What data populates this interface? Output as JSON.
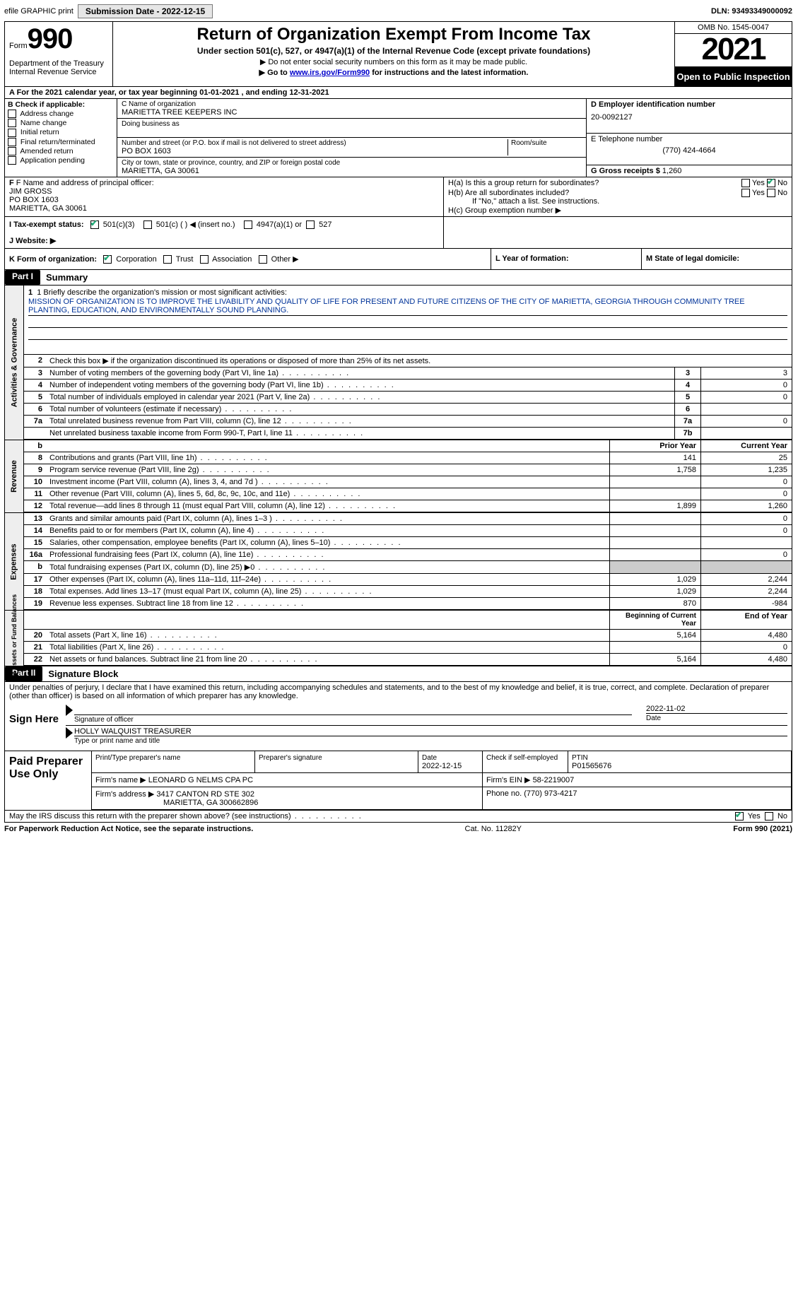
{
  "topbar": {
    "efile": "efile GRAPHIC print",
    "submission_label": "Submission Date - 2022-12-15",
    "dln": "DLN: 93493349000092"
  },
  "header": {
    "form_word": "Form",
    "form_num": "990",
    "title": "Return of Organization Exempt From Income Tax",
    "sub1": "Under section 501(c), 527, or 4947(a)(1) of the Internal Revenue Code (except private foundations)",
    "sub2": "▶ Do not enter social security numbers on this form as it may be made public.",
    "sub3_pre": "▶ Go to ",
    "sub3_link": "www.irs.gov/Form990",
    "sub3_post": " for instructions and the latest information.",
    "dept": "Department of the Treasury Internal Revenue Service",
    "omb": "OMB No. 1545-0047",
    "year": "2021",
    "open": "Open to Public Inspection"
  },
  "rowA": "A For the 2021 calendar year, or tax year beginning 01-01-2021    , and ending 12-31-2021",
  "colB": {
    "header": "B Check if applicable:",
    "items": [
      "Address change",
      "Name change",
      "Initial return",
      "Final return/terminated",
      "Amended return",
      "Application pending"
    ]
  },
  "colC": {
    "name_lbl": "C Name of organization",
    "name": "MARIETTA TREE KEEPERS INC",
    "dba_lbl": "Doing business as",
    "street_lbl": "Number and street (or P.O. box if mail is not delivered to street address)",
    "room_lbl": "Room/suite",
    "street": "PO BOX 1603",
    "city_lbl": "City or town, state or province, country, and ZIP or foreign postal code",
    "city": "MARIETTA, GA  30061"
  },
  "colD": {
    "ein_lbl": "D Employer identification number",
    "ein": "20-0092127",
    "phone_lbl": "E Telephone number",
    "phone": "(770) 424-4664",
    "gross_lbl": "G Gross receipts $",
    "gross": "1,260"
  },
  "rowF": {
    "lbl": "F Name and address of principal officer:",
    "name": "JIM GROSS",
    "addr1": "PO BOX 1603",
    "addr2": "MARIETTA, GA  30061"
  },
  "rowH": {
    "a": "H(a)  Is this a group return for subordinates?",
    "b": "H(b)  Are all subordinates included?",
    "b2": "If \"No,\" attach a list. See instructions.",
    "c": "H(c)  Group exemption number ▶",
    "yes": "Yes",
    "no": "No"
  },
  "rowI": {
    "lbl": "I    Tax-exempt status:",
    "o1": "501(c)(3)",
    "o2": "501(c) (  ) ◀ (insert no.)",
    "o3": "4947(a)(1) or",
    "o4": "527"
  },
  "rowJ": "J    Website: ▶",
  "rowK": {
    "lbl": "K Form of organization:",
    "o1": "Corporation",
    "o2": "Trust",
    "o3": "Association",
    "o4": "Other ▶",
    "l": "L Year of formation:",
    "m": "M State of legal domicile:"
  },
  "part1": {
    "hdr": "Part I",
    "title": "Summary",
    "q1_lbl": "1   Briefly describe the organization's mission or most significant activities:",
    "q1": "MISSION OF ORGANIZATION IS TO IMPROVE THE LIVABILITY AND QUALITY OF LIFE FOR PRESENT AND FUTURE CITIZENS OF THE CITY OF MARIETTA, GEORGIA THROUGH COMMUNITY TREE PLANTING, EDUCATION, AND ENVIRONMENTALLY SOUND PLANNING.",
    "q2": "Check this box ▶      if the organization discontinued its operations or disposed of more than 25% of its net assets.",
    "rows_ag": [
      {
        "n": "3",
        "t": "Number of voting members of the governing body (Part VI, line 1a)",
        "b": "3",
        "v": "3"
      },
      {
        "n": "4",
        "t": "Number of independent voting members of the governing body (Part VI, line 1b)",
        "b": "4",
        "v": "0"
      },
      {
        "n": "5",
        "t": "Total number of individuals employed in calendar year 2021 (Part V, line 2a)",
        "b": "5",
        "v": "0"
      },
      {
        "n": "6",
        "t": "Total number of volunteers (estimate if necessary)",
        "b": "6",
        "v": ""
      },
      {
        "n": "7a",
        "t": "Total unrelated business revenue from Part VIII, column (C), line 12",
        "b": "7a",
        "v": "0"
      },
      {
        "n": "",
        "t": "Net unrelated business taxable income from Form 990-T, Part I, line 11",
        "b": "7b",
        "v": ""
      }
    ],
    "tab_ag": "Activities & Governance",
    "tab_rev": "Revenue",
    "tab_exp": "Expenses",
    "tab_net": "Net Assets or Fund Balances",
    "col_prior": "Prior Year",
    "col_curr": "Current Year",
    "col_begin": "Beginning of Current Year",
    "col_end": "End of Year",
    "rows_rev": [
      {
        "n": "8",
        "t": "Contributions and grants (Part VIII, line 1h)",
        "p": "141",
        "c": "25"
      },
      {
        "n": "9",
        "t": "Program service revenue (Part VIII, line 2g)",
        "p": "1,758",
        "c": "1,235"
      },
      {
        "n": "10",
        "t": "Investment income (Part VIII, column (A), lines 3, 4, and 7d )",
        "p": "",
        "c": "0"
      },
      {
        "n": "11",
        "t": "Other revenue (Part VIII, column (A), lines 5, 6d, 8c, 9c, 10c, and 11e)",
        "p": "",
        "c": "0"
      },
      {
        "n": "12",
        "t": "Total revenue—add lines 8 through 11 (must equal Part VIII, column (A), line 12)",
        "p": "1,899",
        "c": "1,260"
      }
    ],
    "rows_exp": [
      {
        "n": "13",
        "t": "Grants and similar amounts paid (Part IX, column (A), lines 1–3 )",
        "p": "",
        "c": "0"
      },
      {
        "n": "14",
        "t": "Benefits paid to or for members (Part IX, column (A), line 4)",
        "p": "",
        "c": "0"
      },
      {
        "n": "15",
        "t": "Salaries, other compensation, employee benefits (Part IX, column (A), lines 5–10)",
        "p": "",
        "c": ""
      },
      {
        "n": "16a",
        "t": "Professional fundraising fees (Part IX, column (A), line 11e)",
        "p": "",
        "c": "0"
      },
      {
        "n": "b",
        "t": "Total fundraising expenses (Part IX, column (D), line 25) ▶0",
        "p": "SHADE",
        "c": "SHADE"
      },
      {
        "n": "17",
        "t": "Other expenses (Part IX, column (A), lines 11a–11d, 11f–24e)",
        "p": "1,029",
        "c": "2,244"
      },
      {
        "n": "18",
        "t": "Total expenses. Add lines 13–17 (must equal Part IX, column (A), line 25)",
        "p": "1,029",
        "c": "2,244"
      },
      {
        "n": "19",
        "t": "Revenue less expenses. Subtract line 18 from line 12",
        "p": "870",
        "c": "-984"
      }
    ],
    "rows_net": [
      {
        "n": "20",
        "t": "Total assets (Part X, line 16)",
        "p": "5,164",
        "c": "4,480"
      },
      {
        "n": "21",
        "t": "Total liabilities (Part X, line 26)",
        "p": "",
        "c": "0"
      },
      {
        "n": "22",
        "t": "Net assets or fund balances. Subtract line 21 from line 20",
        "p": "5,164",
        "c": "4,480"
      }
    ]
  },
  "part2": {
    "hdr": "Part II",
    "title": "Signature Block",
    "decl": "Under penalties of perjury, I declare that I have examined this return, including accompanying schedules and statements, and to the best of my knowledge and belief, it is true, correct, and complete. Declaration of preparer (other than officer) is based on all information of which preparer has any knowledge.",
    "sign_here": "Sign Here",
    "sig_officer": "Signature of officer",
    "sig_date": "2022-11-02",
    "date_lbl": "Date",
    "name_title": "HOLLY WALQUIST  TREASURER",
    "name_lbl": "Type or print name and title",
    "paid": "Paid Preparer Use Only",
    "pt_name_lbl": "Print/Type preparer's name",
    "pt_sig_lbl": "Preparer's signature",
    "pt_date_lbl": "Date",
    "pt_date": "2022-12-15",
    "pt_check_lbl": "Check        if self-employed",
    "ptin_lbl": "PTIN",
    "ptin": "P01565676",
    "firm_name_lbl": "Firm's name     ▶",
    "firm_name": "LEONARD G NELMS CPA PC",
    "firm_ein_lbl": "Firm's EIN ▶",
    "firm_ein": "58-2219007",
    "firm_addr_lbl": "Firm's address ▶",
    "firm_addr": "3417 CANTON RD STE 302",
    "firm_addr2": "MARIETTA, GA  300662896",
    "firm_phone_lbl": "Phone no.",
    "firm_phone": "(770) 973-4217",
    "may_irs": "May the IRS discuss this return with the preparer shown above? (see instructions)"
  },
  "footer": {
    "left": "For Paperwork Reduction Act Notice, see the separate instructions.",
    "mid": "Cat. No. 11282Y",
    "right": "Form 990 (2021)"
  }
}
